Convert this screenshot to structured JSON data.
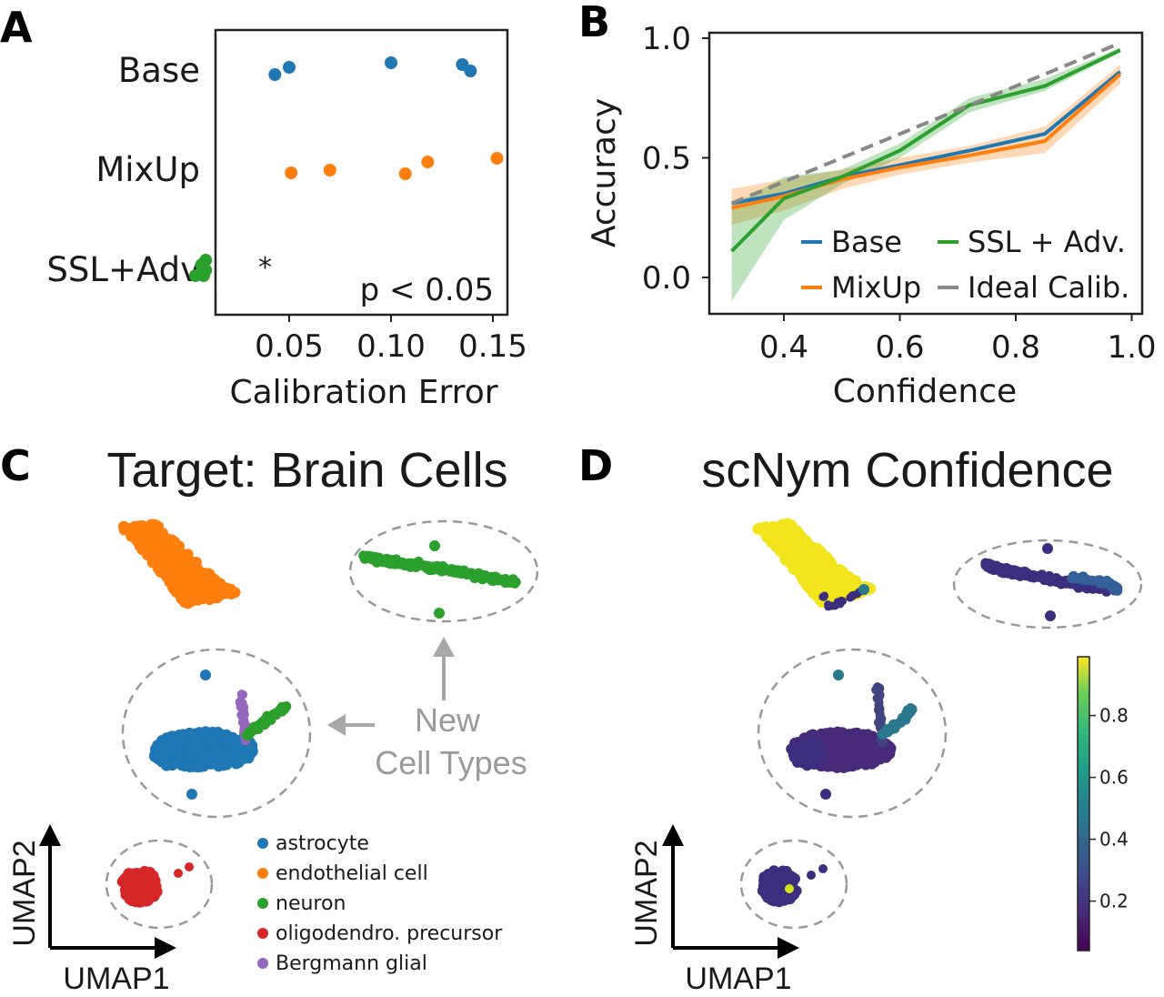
{
  "panels": {
    "a": {
      "letter": "A"
    },
    "b": {
      "letter": "B"
    },
    "c": {
      "letter": "C",
      "title": "Target: Brain Cells",
      "new_label_1": "New",
      "new_label_2": "Cell Types"
    },
    "d": {
      "letter": "D",
      "title": "scNym Confidence"
    }
  },
  "umap_axes": {
    "x": "UMAP1",
    "y": "UMAP2"
  },
  "cell_legend": [
    {
      "label": "astrocyte",
      "color": "#1f77b4"
    },
    {
      "label": "endothelial cell",
      "color": "#ff7f0e"
    },
    {
      "label": "neuron",
      "color": "#2ca02c"
    },
    {
      "label": "oligodendro. precursor",
      "color": "#d62728"
    },
    {
      "label": "Bergmann glial",
      "color": "#9467bd"
    }
  ],
  "colorbar": {
    "ticks": [
      "0.8",
      "0.6",
      "0.4",
      "0.2"
    ],
    "tick_values": [
      0.8,
      0.6,
      0.4,
      0.2
    ],
    "range": [
      0.04,
      0.99
    ]
  },
  "chart_data": [
    {
      "id": "panel-a",
      "type": "scatter",
      "xlabel": "Calibration Error",
      "ylabel": "",
      "xlim": [
        0.0,
        0.155
      ],
      "xticks": [
        0.05,
        0.1,
        0.15
      ],
      "xtick_labels": [
        "0.05",
        "0.10",
        "0.15"
      ],
      "categories": [
        "Base",
        "MixUp",
        "SSL+Adv"
      ],
      "series": [
        {
          "name": "Base",
          "color": "#1f77b4",
          "points": [
            [
              0.043,
              0.04
            ],
            [
              0.05,
              -0.04
            ],
            [
              0.1,
              -0.09
            ],
            [
              0.135,
              -0.07
            ],
            [
              0.139,
              0.0
            ]
          ]
        },
        {
          "name": "MixUp",
          "color": "#ff7f0e",
          "points": [
            [
              0.051,
              0.03
            ],
            [
              0.07,
              0.0
            ],
            [
              0.107,
              0.04
            ],
            [
              0.118,
              -0.09
            ],
            [
              0.152,
              -0.13
            ]
          ]
        },
        {
          "name": "SSL+Adv",
          "color": "#2ca02c",
          "points": [
            [
              0.004,
              0.08
            ],
            [
              0.008,
              0.08
            ],
            [
              0.009,
              0.02
            ],
            [
              0.007,
              -0.04
            ],
            [
              0.009,
              -0.09
            ]
          ]
        }
      ],
      "annotations": {
        "significance_marker": "*",
        "p_text": "p < 0.05"
      }
    },
    {
      "id": "panel-b",
      "type": "line",
      "xlabel": "Confidence",
      "ylabel": "Accuracy",
      "xlim": [
        0.3,
        1.0
      ],
      "ylim": [
        -0.15,
        1.02
      ],
      "xticks": [
        0.4,
        0.6,
        0.8,
        1.0
      ],
      "xtick_labels": [
        "0.4",
        "0.6",
        "0.8",
        "1.0"
      ],
      "yticks": [
        0.0,
        0.5,
        1.0
      ],
      "ytick_labels": [
        "0.0",
        "0.5",
        "1.0"
      ],
      "series": [
        {
          "name": "Base",
          "color": "#1f77b4",
          "x": [
            0.31,
            0.4,
            0.5,
            0.6,
            0.72,
            0.85,
            0.98
          ],
          "y": [
            0.31,
            0.35,
            0.42,
            0.47,
            0.53,
            0.6,
            0.86
          ]
        },
        {
          "name": "MixUp",
          "color": "#ff7f0e",
          "x": [
            0.31,
            0.4,
            0.5,
            0.6,
            0.72,
            0.85,
            0.98
          ],
          "y": [
            0.29,
            0.34,
            0.41,
            0.46,
            0.51,
            0.57,
            0.85
          ],
          "band": {
            "lower": [
              0.22,
              0.28,
              0.37,
              0.43,
              0.48,
              0.52,
              0.81
            ],
            "upper": [
              0.37,
              0.41,
              0.45,
              0.5,
              0.55,
              0.63,
              0.89
            ]
          }
        },
        {
          "name": "SSL + Adv.",
          "color": "#2ca02c",
          "x": [
            0.31,
            0.4,
            0.5,
            0.6,
            0.72,
            0.85,
            0.98
          ],
          "y": [
            0.11,
            0.33,
            0.42,
            0.53,
            0.72,
            0.8,
            0.95
          ],
          "band": {
            "lower": [
              -0.1,
              0.24,
              0.39,
              0.5,
              0.69,
              0.78,
              0.94
            ],
            "upper": [
              0.3,
              0.42,
              0.45,
              0.56,
              0.75,
              0.83,
              0.96
            ]
          }
        },
        {
          "name": "Ideal Calib.",
          "color": "#888888",
          "dashed": true,
          "x": [
            0.31,
            0.98
          ],
          "y": [
            0.31,
            0.98
          ]
        }
      ],
      "legend_position": "lower-right"
    }
  ]
}
